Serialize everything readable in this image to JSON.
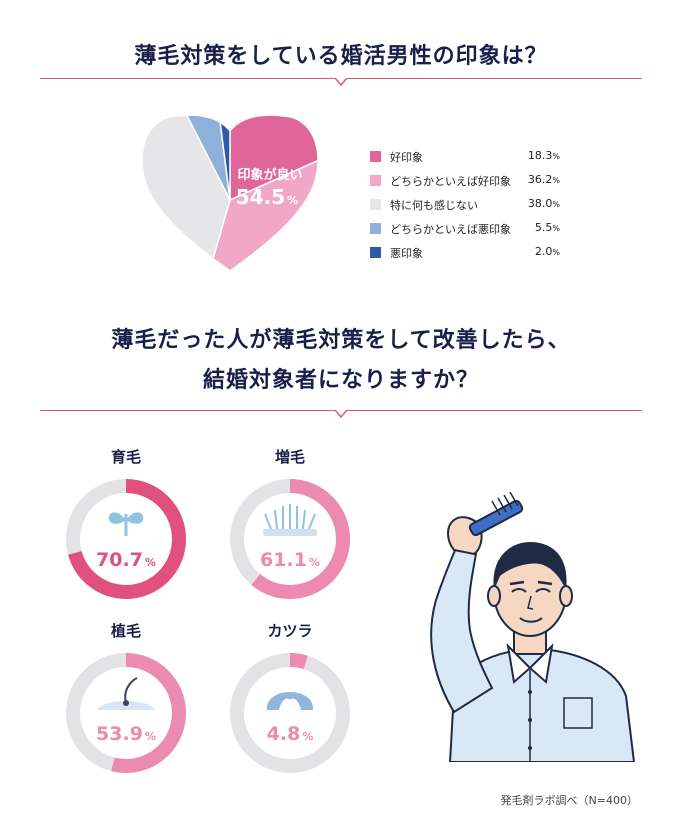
{
  "colors": {
    "navy": "#1a1f4a",
    "accent": "#e0517f",
    "good": "#e0669a",
    "somewhat_good": "#f0a8c6",
    "neutral": "#e6e6e9",
    "somewhat_bad": "#8fb0d8",
    "bad": "#2f5aa8",
    "donut_track": "#e3e3e6"
  },
  "section1": {
    "title": "薄毛対策をしている婚活男性の印象は？",
    "heart_label": "印象が良い",
    "heart_value": "54.5",
    "heart_unit": "%"
  },
  "section2": {
    "title_line1": "薄毛だった人が薄毛対策をして改善したら、",
    "title_line2": "結婚対象者になりますか？"
  },
  "source": "発毛剤ラボ調べ（N=400）",
  "chart_data": [
    {
      "type": "pie",
      "title": "薄毛対策をしている婚活男性の印象は？",
      "categories": [
        "好印象",
        "どちらかといえば好印象",
        "特に何も感じない",
        "どちらかといえば悪印象",
        "悪印象"
      ],
      "values": [
        18.3,
        36.2,
        38.0,
        5.5,
        2.0
      ],
      "value_labels": [
        "18.3",
        "36.2",
        "38.0",
        "5.5",
        "2.0"
      ],
      "unit": "%",
      "colors": [
        "#e0669a",
        "#f0a8c6",
        "#e6e6e9",
        "#8fb0d8",
        "#2f5aa8"
      ],
      "legend": "right"
    },
    {
      "type": "pie",
      "title": "薄毛だった人が薄毛対策をして改善したら、結婚対象者になりますか？",
      "donuts": [
        {
          "name": "育毛",
          "value": 70.7,
          "label": "70.7",
          "unit": "%",
          "color": "#e0517f",
          "icon": "sprout-icon"
        },
        {
          "name": "増毛",
          "value": 61.1,
          "label": "61.1",
          "unit": "%",
          "color": "#ec8ab0",
          "icon": "hair-growth-icon"
        },
        {
          "name": "植毛",
          "value": 53.9,
          "label": "53.9",
          "unit": "%",
          "color": "#ec8ab0",
          "icon": "hair-follicle-icon"
        },
        {
          "name": "カツラ",
          "value": 4.8,
          "label": "4.8",
          "unit": "%",
          "color": "#ec8ab0",
          "icon": "wig-icon"
        }
      ]
    }
  ]
}
